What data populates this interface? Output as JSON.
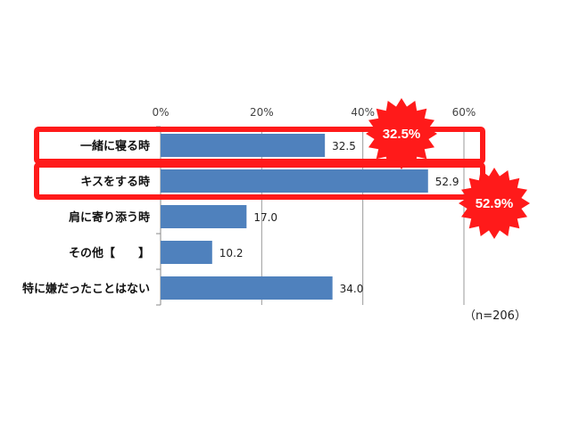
{
  "chart_data": {
    "type": "bar",
    "orientation": "horizontal",
    "categories": [
      "一緒に寝る時",
      "キスをする時",
      "肩に寄り添う時",
      "その他【　　】",
      "特に嫌だったことはない"
    ],
    "values": [
      32.5,
      52.9,
      17.0,
      10.2,
      34.0
    ],
    "value_labels": [
      "32.5",
      "52.9",
      "17.0",
      "10.2",
      "34.0"
    ],
    "xlim": [
      0,
      60
    ],
    "ticks": [
      "0%",
      "20%",
      "40%",
      "60%"
    ],
    "grid": true,
    "bar_color": "#4f81bd",
    "highlight_color": "#ff1a1a",
    "highlighted_categories": [
      0,
      1
    ],
    "callouts": [
      {
        "label": "32.5%",
        "category": 0
      },
      {
        "label": "52.9%",
        "category": 1
      }
    ],
    "note": "（n=206）"
  }
}
